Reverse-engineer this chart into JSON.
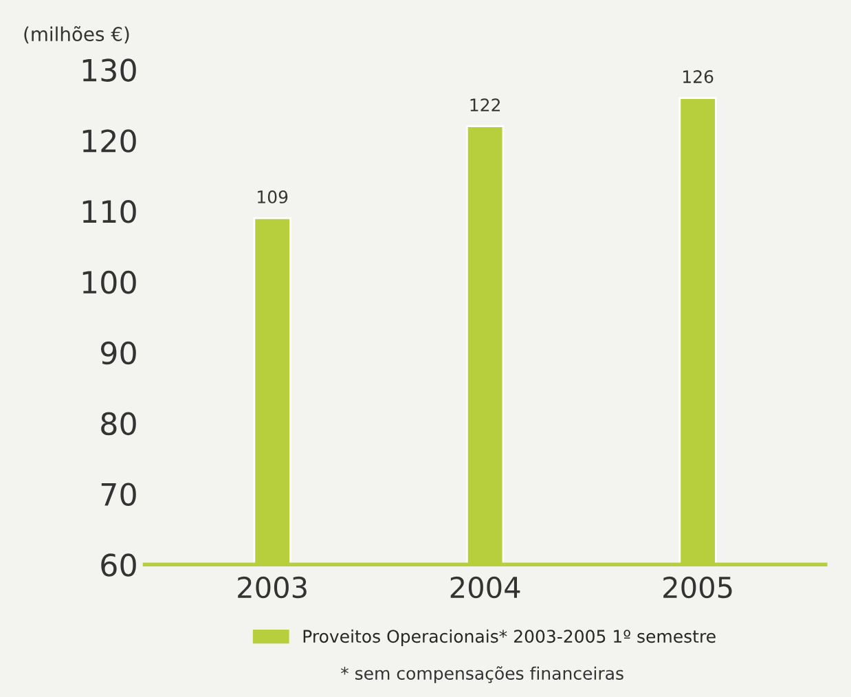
{
  "chart_data": {
    "type": "bar",
    "ylabel": "(milhões €)",
    "categories": [
      "2003",
      "2004",
      "2005"
    ],
    "series": [
      {
        "name": "Proveitos Operacionais* 2003-2005 1º semestre",
        "color": "#b7cf3c",
        "values": [
          109,
          122,
          126
        ]
      }
    ],
    "ylim": [
      60,
      130
    ],
    "yticks": [
      60,
      70,
      80,
      90,
      100,
      110,
      120,
      130
    ],
    "data_labels": true,
    "grid": false,
    "legend": "bottom",
    "annotations": [
      "* sem compensações financeiras"
    ]
  }
}
